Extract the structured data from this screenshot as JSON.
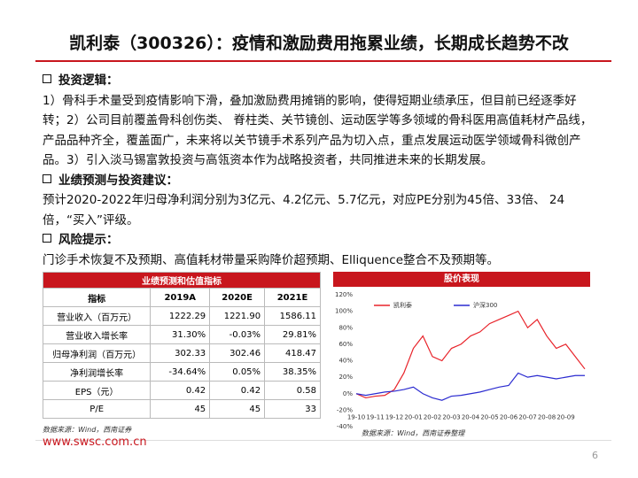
{
  "header": {
    "title": "凯利泰（300326）：疫情和激励费用拖累业绩，长期成长趋势不改"
  },
  "sections": [
    {
      "heading": "投资逻辑：",
      "text": "1）骨科手术量受到疫情影响下滑，叠加激励费用摊销的影响，使得短期业绩承压，但目前已经逐季好转；2）公司目前覆盖骨科创伤类、 脊柱类、关节镜创、运动医学等多领域的骨科医用高值耗材产品线，产品品种齐全，覆盖面广，未来将以关节镜手术系列产品为切入点，重点发展运动医学领域骨科微创产品。3）引入淡马锡富敦投资与高瓴资本作为战略投资者，共同推进未来的长期发展。"
    },
    {
      "heading": "业绩预测与投资建议：",
      "text": "预计2020-2022年归母净利润分别为3亿元、4.2亿元、5.7亿元，对应PE分别为45倍、33倍、 24倍，“买入”评级。"
    },
    {
      "heading": "风险提示：",
      "text": "门诊手术恢复不及预期、高值耗材带量采购降价超预期、Elliquence整合不及预期等。"
    }
  ],
  "table": {
    "caption": "业绩预测和估值指标",
    "columns": [
      "指标",
      "2019A",
      "2020E",
      "2021E"
    ],
    "rows": [
      [
        "营业收入（百万元）",
        "1222.29",
        "1221.90",
        "1586.11"
      ],
      [
        "营业收入增长率",
        "31.30%",
        "-0.03%",
        "29.81%"
      ],
      [
        "归母净利润（百万元）",
        "302.33",
        "302.46",
        "418.47"
      ],
      [
        "净利润增长率",
        "-34.64%",
        "0.05%",
        "38.35%"
      ],
      [
        "EPS（元）",
        "0.42",
        "0.42",
        "0.58"
      ],
      [
        "P/E",
        "45",
        "45",
        "33"
      ]
    ],
    "source": "数据来源：Wind，西南证券"
  },
  "chart_data": {
    "type": "line",
    "title": "股价表现",
    "source": "数据来源：Wind，西南证券整理",
    "categories": [
      "19-10",
      null,
      "19-11",
      null,
      "19-12",
      null,
      "20-01",
      null,
      "20-02",
      null,
      "20-03",
      null,
      "20-04",
      null,
      "20-05",
      null,
      "20-06",
      null,
      "20-07",
      null,
      "20-08",
      null,
      "20-09",
      null,
      null
    ],
    "series": [
      {
        "name": "凯利泰",
        "color": "#e8232a",
        "values": [
          0,
          -5,
          -3,
          -2,
          5,
          25,
          55,
          70,
          45,
          40,
          55,
          60,
          70,
          75,
          85,
          90,
          95,
          100,
          80,
          90,
          70,
          55,
          60,
          45,
          30
        ]
      },
      {
        "name": "沪深300",
        "color": "#2b2bd0",
        "values": [
          0,
          -2,
          0,
          2,
          3,
          5,
          8,
          0,
          -5,
          -8,
          -3,
          -2,
          0,
          2,
          5,
          8,
          10,
          25,
          20,
          22,
          20,
          18,
          20,
          22,
          22
        ]
      }
    ],
    "ylim": [
      -40,
      120
    ],
    "yticks": [
      {
        "value": -40,
        "label": "-40%"
      },
      {
        "value": -20,
        "label": "-20%"
      },
      {
        "value": 0,
        "label": "0%"
      },
      {
        "value": 20,
        "label": "20%"
      },
      {
        "value": 40,
        "label": "40%"
      },
      {
        "value": 60,
        "label": "60%"
      },
      {
        "value": 80,
        "label": "80%"
      },
      {
        "value": 100,
        "label": "100%"
      },
      {
        "value": 120,
        "label": "120%"
      }
    ],
    "legend": "top-left"
  },
  "footer": {
    "website": "www.swsc.com.cn",
    "page": "6"
  }
}
